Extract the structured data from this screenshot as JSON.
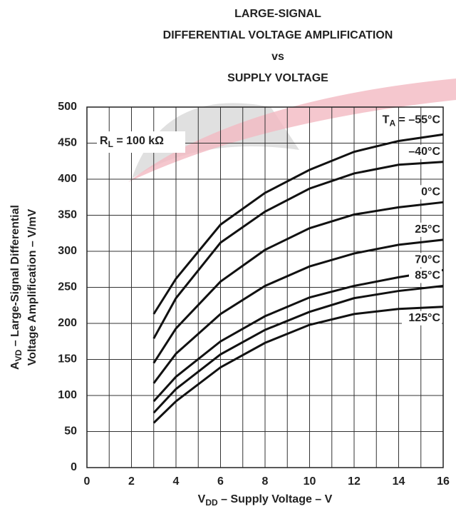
{
  "chart_data": {
    "type": "line",
    "title": [
      "LARGE-SIGNAL",
      "DIFFERENTIAL VOLTAGE AMPLIFICATION",
      "vs",
      "SUPPLY VOLTAGE"
    ],
    "xlabel": [
      "V",
      "DD",
      " – Supply Voltage – V"
    ],
    "ylabel": [
      [
        "A",
        "VD",
        " – Large-Signal Differential"
      ],
      "Voltage Amplification – V/mV"
    ],
    "annotation": [
      "R",
      "L",
      " = 100 kΩ"
    ],
    "series_prefix": [
      "T",
      "A",
      " = "
    ],
    "x": [
      3,
      4,
      6,
      8,
      10,
      12,
      14,
      16
    ],
    "series": [
      {
        "name": "–55°C",
        "color": "#111",
        "values": [
          213,
          262,
          337,
          381,
          413,
          438,
          453,
          462
        ]
      },
      {
        "name": "–40°C",
        "color": "#111",
        "values": [
          179,
          235,
          312,
          355,
          387,
          408,
          420,
          424
        ]
      },
      {
        "name": "0°C",
        "color": "#111",
        "values": [
          145,
          193,
          258,
          302,
          332,
          351,
          361,
          368
        ]
      },
      {
        "name": "25°C",
        "color": "#111",
        "values": [
          117,
          158,
          213,
          252,
          279,
          297,
          309,
          316
        ]
      },
      {
        "name": "70°C",
        "color": "#111",
        "values": [
          92,
          126,
          175,
          210,
          236,
          252,
          264,
          274
        ]
      },
      {
        "name": "85°C",
        "color": "#111",
        "values": [
          76,
          109,
          157,
          191,
          216,
          235,
          245,
          252
        ]
      },
      {
        "name": "125°C",
        "color": "#111",
        "values": [
          62,
          92,
          139,
          173,
          198,
          213,
          220,
          223
        ]
      }
    ],
    "xlim": [
      0,
      16
    ],
    "xticks": [
      0,
      2,
      4,
      6,
      8,
      10,
      12,
      14,
      16
    ],
    "xminor": [
      1,
      3,
      5,
      7,
      9,
      11,
      13,
      15
    ],
    "ylim": [
      0,
      500
    ],
    "yticks": [
      0,
      50,
      100,
      150,
      200,
      250,
      300,
      350,
      400,
      450,
      500
    ],
    "grid": true
  }
}
